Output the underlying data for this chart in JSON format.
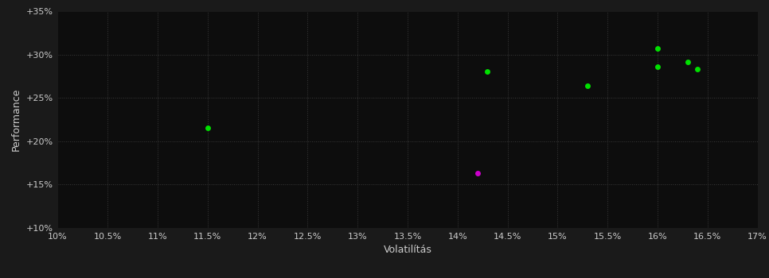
{
  "background_color": "#1a1a1a",
  "plot_bg_color": "#0d0d0d",
  "grid_color": "#3a3a3a",
  "text_color": "#cccccc",
  "xlabel": "Volatilítás",
  "ylabel": "Performance",
  "xlim": [
    0.1,
    0.17
  ],
  "ylim": [
    0.1,
    0.35
  ],
  "xticks": [
    0.1,
    0.105,
    0.11,
    0.115,
    0.12,
    0.125,
    0.13,
    0.135,
    0.14,
    0.145,
    0.15,
    0.155,
    0.16,
    0.165,
    0.17
  ],
  "yticks": [
    0.1,
    0.15,
    0.2,
    0.25,
    0.3,
    0.35
  ],
  "xtick_labels": [
    "10%",
    "10.5%",
    "11%",
    "11.5%",
    "12%",
    "12.5%",
    "13%",
    "13.5%",
    "14%",
    "14.5%",
    "15%",
    "15.5%",
    "16%",
    "16.5%",
    "17%"
  ],
  "ytick_labels": [
    "+10%",
    "+15%",
    "+20%",
    "+25%",
    "+30%",
    "+35%"
  ],
  "green_points": [
    [
      0.115,
      0.215
    ],
    [
      0.143,
      0.28
    ],
    [
      0.153,
      0.264
    ],
    [
      0.16,
      0.307
    ],
    [
      0.16,
      0.286
    ],
    [
      0.163,
      0.291
    ],
    [
      0.164,
      0.283
    ]
  ],
  "magenta_points": [
    [
      0.142,
      0.163
    ]
  ],
  "green_color": "#00e000",
  "magenta_color": "#cc00cc",
  "marker_size": 5,
  "axis_fontsize": 9,
  "tick_fontsize": 8
}
